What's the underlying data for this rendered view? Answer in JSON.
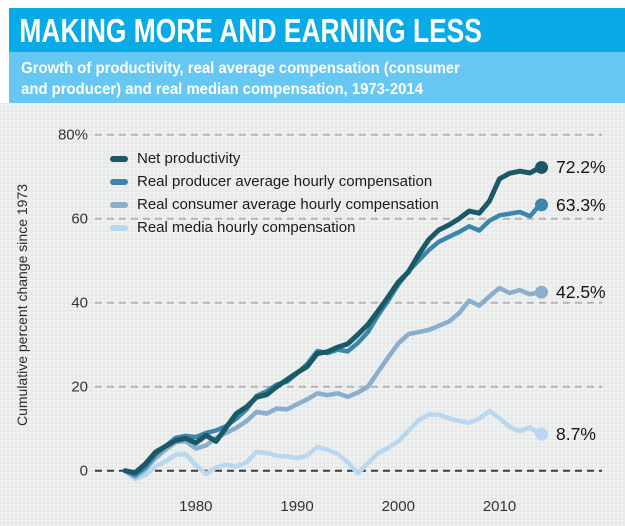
{
  "header": {
    "title": "MAKING MORE AND EARNING LESS",
    "subtitle_line1": "Growth of productivity, real average compensation (consumer",
    "subtitle_line2": "and producer) and real median compensation, 1973-2014",
    "title_band_color": "#09aae8",
    "subtitle_band_color": "#66c7f3"
  },
  "chart_data": {
    "type": "line",
    "title": "MAKING MORE AND EARNING LESS",
    "subtitle": "Growth of productivity, real average compensation (consumer and producer) and real median compensation, 1973-2014",
    "ylabel": "Cumulative percent change since 1973",
    "xlabel": "",
    "ylim": [
      -5,
      85
    ],
    "x_range": [
      1973,
      2014
    ],
    "grid": "horizontal dashed",
    "legend_position": "top-left inside",
    "background_color": "#e9eaea",
    "grid_color": "#b3b6b8",
    "zero_line_color": "#3c3c3c",
    "tick_text_color": "#333333",
    "yticks": [
      {
        "value": 80,
        "label": "80%"
      },
      {
        "value": 60,
        "label": "60"
      },
      {
        "value": 40,
        "label": "40"
      },
      {
        "value": 20,
        "label": "20"
      },
      {
        "value": 0,
        "label": "0"
      }
    ],
    "xticks": [
      {
        "value": 1980,
        "label": "1980"
      },
      {
        "value": 1990,
        "label": "1990"
      },
      {
        "value": 2000,
        "label": "2000"
      },
      {
        "value": 2010,
        "label": "2010"
      }
    ],
    "years": [
      1973,
      1974,
      1975,
      1976,
      1977,
      1978,
      1979,
      1980,
      1981,
      1982,
      1983,
      1984,
      1985,
      1986,
      1987,
      1988,
      1989,
      1990,
      1991,
      1992,
      1993,
      1994,
      1995,
      1996,
      1997,
      1998,
      1999,
      2000,
      2001,
      2002,
      2003,
      2004,
      2005,
      2006,
      2007,
      2008,
      2009,
      2010,
      2011,
      2012,
      2013,
      2014
    ],
    "series": [
      {
        "name": "Net productivity",
        "color": "#1a5966",
        "width": 5,
        "end_label": "72.2%",
        "end_value": 72.2,
        "values": [
          0,
          -0.5,
          1.6,
          4.4,
          5.8,
          7.2,
          7.7,
          6.6,
          8.4,
          7.0,
          10.3,
          13.6,
          15.2,
          17.5,
          18.1,
          20.0,
          21.7,
          23.3,
          24.8,
          27.9,
          28.3,
          29.4,
          30.2,
          32.4,
          34.8,
          38.0,
          41.4,
          44.9,
          47.3,
          51.4,
          55.0,
          57.3,
          58.5,
          60.0,
          61.8,
          61.3,
          64.2,
          69.5,
          70.8,
          71.3,
          70.9,
          72.2
        ]
      },
      {
        "name": "Real producer average hourly compensation",
        "color": "#3a86ad",
        "width": 4.5,
        "end_label": "63.3%",
        "end_value": 63.3,
        "values": [
          0,
          -1.0,
          0.8,
          3.8,
          5.8,
          7.8,
          8.3,
          8.0,
          9.0,
          9.6,
          10.6,
          12.4,
          14.6,
          17.8,
          18.9,
          20.5,
          21.2,
          23.2,
          25.4,
          28.5,
          28.0,
          28.8,
          28.4,
          30.4,
          33.0,
          37.0,
          40.5,
          44.3,
          47.5,
          50.0,
          52.5,
          54.5,
          55.7,
          56.8,
          58.2,
          57.2,
          59.5,
          60.8,
          61.2,
          61.6,
          60.6,
          63.3
        ]
      },
      {
        "name": "Real consumer average hourly compensation",
        "color": "#8aaecb",
        "width": 4.5,
        "end_label": "42.5%",
        "end_value": 42.5,
        "values": [
          0,
          -1.5,
          0.3,
          3.0,
          5.0,
          6.8,
          7.0,
          5.3,
          6.0,
          7.8,
          9.0,
          10.2,
          11.8,
          14.0,
          13.6,
          14.8,
          14.6,
          15.8,
          17.0,
          18.4,
          18.0,
          18.4,
          17.6,
          18.6,
          20.0,
          23.5,
          27.0,
          30.3,
          32.5,
          33.0,
          33.5,
          34.5,
          35.5,
          37.5,
          40.5,
          39.3,
          41.5,
          43.5,
          42.3,
          43.0,
          42.0,
          42.5
        ]
      },
      {
        "name": "Real media hourly compensation",
        "color": "#b9d7ee",
        "width": 4.5,
        "end_label": "8.7%",
        "end_value": 8.7,
        "values": [
          0,
          -2.0,
          -1.0,
          1.0,
          2.2,
          3.8,
          3.9,
          1.3,
          -0.8,
          0.8,
          1.4,
          1.0,
          2.0,
          4.5,
          4.2,
          3.6,
          3.4,
          3.0,
          3.6,
          5.7,
          5.0,
          4.0,
          2.0,
          -0.6,
          1.8,
          4.2,
          5.5,
          7.0,
          9.5,
          12.0,
          13.4,
          13.3,
          12.5,
          11.8,
          11.4,
          12.4,
          14.2,
          12.5,
          10.4,
          9.4,
          10.3,
          8.7
        ]
      }
    ]
  }
}
